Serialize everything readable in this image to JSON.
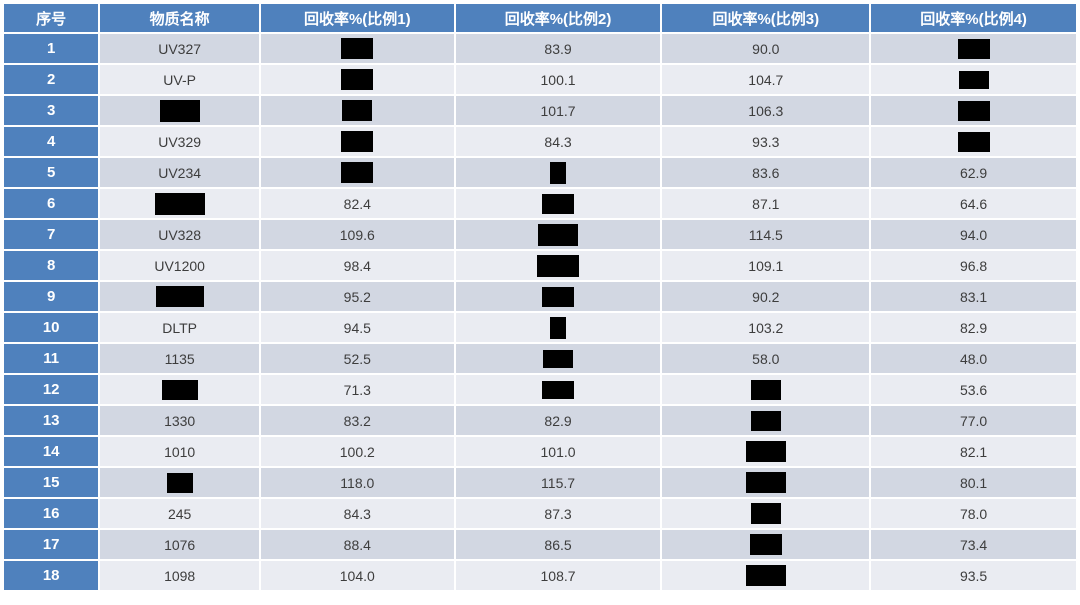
{
  "colors": {
    "accent": "#4f81bd",
    "row_band_dark": "#d2d7e2",
    "row_band_light": "#eaecf2",
    "cell_text": "#3d3d3d",
    "header_text": "#ffffff"
  },
  "table": {
    "headers": [
      "序号",
      "物质名称",
      "回收率%(比例1)",
      "回收率%(比例2)",
      "回收率%(比例3)",
      "回收率%(比例4)"
    ],
    "redaction_note": "redaction-box = blacked-out value",
    "rows": [
      {
        "no": "1",
        "cells": [
          {
            "text": "UV327"
          },
          {
            "redacted": true,
            "w": 32,
            "h": 21
          },
          {
            "text": "83.9"
          },
          {
            "text": "90.0"
          },
          {
            "redacted": true,
            "w": 32,
            "h": 20
          }
        ]
      },
      {
        "no": "2",
        "cells": [
          {
            "text": "UV-P"
          },
          {
            "redacted": true,
            "w": 32,
            "h": 21
          },
          {
            "text": "100.1"
          },
          {
            "text": "104.7"
          },
          {
            "redacted": true,
            "w": 30,
            "h": 18
          }
        ]
      },
      {
        "no": "3",
        "cells": [
          {
            "redacted": true,
            "w": 40,
            "h": 22
          },
          {
            "redacted": true,
            "w": 30,
            "h": 21
          },
          {
            "text": "101.7"
          },
          {
            "text": "106.3"
          },
          {
            "redacted": true,
            "w": 32,
            "h": 20
          }
        ]
      },
      {
        "no": "4",
        "cells": [
          {
            "text": "UV329"
          },
          {
            "redacted": true,
            "w": 32,
            "h": 21
          },
          {
            "text": "84.3"
          },
          {
            "text": "93.3"
          },
          {
            "redacted": true,
            "w": 32,
            "h": 20
          }
        ]
      },
      {
        "no": "5",
        "cells": [
          {
            "text": "UV234"
          },
          {
            "redacted": true,
            "w": 32,
            "h": 21
          },
          {
            "redacted": true,
            "w": 16,
            "h": 22
          },
          {
            "text": "83.6"
          },
          {
            "text": "62.9"
          }
        ]
      },
      {
        "no": "6",
        "cells": [
          {
            "redacted": true,
            "w": 50,
            "h": 22
          },
          {
            "text": "82.4"
          },
          {
            "redacted": true,
            "w": 32,
            "h": 20
          },
          {
            "text": "87.1"
          },
          {
            "text": "64.6"
          }
        ]
      },
      {
        "no": "7",
        "cells": [
          {
            "text": "UV328"
          },
          {
            "text": "109.6"
          },
          {
            "redacted": true,
            "w": 40,
            "h": 22
          },
          {
            "text": "114.5"
          },
          {
            "text": "94.0"
          }
        ]
      },
      {
        "no": "8",
        "cells": [
          {
            "text": "UV1200"
          },
          {
            "text": "98.4"
          },
          {
            "redacted": true,
            "w": 42,
            "h": 22
          },
          {
            "text": "109.1"
          },
          {
            "text": "96.8"
          }
        ]
      },
      {
        "no": "9",
        "cells": [
          {
            "redacted": true,
            "w": 48,
            "h": 21
          },
          {
            "text": "95.2"
          },
          {
            "redacted": true,
            "w": 32,
            "h": 20
          },
          {
            "text": "90.2"
          },
          {
            "text": "83.1"
          }
        ]
      },
      {
        "no": "10",
        "cells": [
          {
            "text": "DLTP"
          },
          {
            "text": "94.5"
          },
          {
            "redacted": true,
            "w": 16,
            "h": 22
          },
          {
            "text": "103.2"
          },
          {
            "text": "82.9"
          }
        ]
      },
      {
        "no": "11",
        "cells": [
          {
            "text": "1135"
          },
          {
            "text": "52.5"
          },
          {
            "redacted": true,
            "w": 30,
            "h": 18
          },
          {
            "text": "58.0"
          },
          {
            "text": "48.0"
          }
        ]
      },
      {
        "no": "12",
        "cells": [
          {
            "redacted": true,
            "w": 36,
            "h": 20
          },
          {
            "text": "71.3"
          },
          {
            "redacted": true,
            "w": 32,
            "h": 18
          },
          {
            "redacted": true,
            "w": 30,
            "h": 20
          },
          {
            "text": "53.6"
          }
        ]
      },
      {
        "no": "13",
        "cells": [
          {
            "text": "1330"
          },
          {
            "text": "83.2"
          },
          {
            "text": "82.9"
          },
          {
            "redacted": true,
            "w": 30,
            "h": 20
          },
          {
            "text": "77.0"
          }
        ]
      },
      {
        "no": "14",
        "cells": [
          {
            "text": "1010"
          },
          {
            "text": "100.2"
          },
          {
            "text": "101.0"
          },
          {
            "redacted": true,
            "w": 40,
            "h": 21
          },
          {
            "text": "82.1"
          }
        ]
      },
      {
        "no": "15",
        "cells": [
          {
            "redacted": true,
            "w": 26,
            "h": 20
          },
          {
            "text": "118.0"
          },
          {
            "text": "115.7"
          },
          {
            "redacted": true,
            "w": 40,
            "h": 21
          },
          {
            "text": "80.1"
          }
        ]
      },
      {
        "no": "16",
        "cells": [
          {
            "text": "245"
          },
          {
            "text": "84.3"
          },
          {
            "text": "87.3"
          },
          {
            "redacted": true,
            "w": 30,
            "h": 21
          },
          {
            "text": "78.0"
          }
        ]
      },
      {
        "no": "17",
        "cells": [
          {
            "text": "1076"
          },
          {
            "text": "88.4"
          },
          {
            "text": "86.5"
          },
          {
            "redacted": true,
            "w": 32,
            "h": 21
          },
          {
            "text": "73.4"
          }
        ]
      },
      {
        "no": "18",
        "cells": [
          {
            "text": "1098"
          },
          {
            "text": "104.0"
          },
          {
            "text": "108.7"
          },
          {
            "redacted": true,
            "w": 40,
            "h": 21
          },
          {
            "text": "93.5"
          }
        ]
      }
    ]
  }
}
